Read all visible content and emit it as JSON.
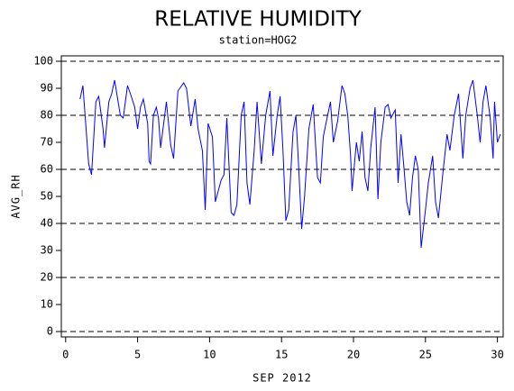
{
  "chart_data": {
    "type": "line",
    "title": "RELATIVE HUMIDITY",
    "subtitle": "station=HOG2",
    "x_label": "SEP 2012",
    "y_label": "AVG_RH",
    "xlim": [
      -0.3,
      30.4
    ],
    "xticks": [
      0,
      5,
      10,
      15,
      20,
      25,
      30
    ],
    "ylim": [
      -2,
      102
    ],
    "yticks": [
      0,
      10,
      20,
      30,
      40,
      50,
      60,
      70,
      80,
      90,
      100
    ],
    "grid_values": [
      0,
      20,
      40,
      60,
      80,
      100
    ],
    "series": [
      {
        "color": "#0000ff",
        "x": [
          1.0,
          1.2,
          1.6,
          1.8,
          2.1,
          2.3,
          2.6,
          2.7,
          3.0,
          3.2,
          3.4,
          3.8,
          4.0,
          4.3,
          4.5,
          4.8,
          5.0,
          5.2,
          5.4,
          5.7,
          5.8,
          5.9,
          6.1,
          6.3,
          6.45,
          6.6,
          7.0,
          7.3,
          7.5,
          7.8,
          8.2,
          8.4,
          8.7,
          9.0,
          9.2,
          9.5,
          9.7,
          9.9,
          10.2,
          10.4,
          10.8,
          11.0,
          11.2,
          11.5,
          11.7,
          11.9,
          12.2,
          12.4,
          12.6,
          12.8,
          13.1,
          13.3,
          13.6,
          13.9,
          14.2,
          14.4,
          14.7,
          14.9,
          15.1,
          15.3,
          15.5,
          15.8,
          16.0,
          16.2,
          16.4,
          16.6,
          16.9,
          17.2,
          17.5,
          17.7,
          17.9,
          18.2,
          18.4,
          18.6,
          18.9,
          19.2,
          19.4,
          19.6,
          19.8,
          19.9,
          20.2,
          20.4,
          20.6,
          20.8,
          21.0,
          21.2,
          21.5,
          21.7,
          21.9,
          22.2,
          22.4,
          22.6,
          22.9,
          23.1,
          23.3,
          23.5,
          23.7,
          23.9,
          24.1,
          24.3,
          24.5,
          24.7,
          25.0,
          25.2,
          25.5,
          25.7,
          25.9,
          26.2,
          26.5,
          26.7,
          27.0,
          27.3,
          27.6,
          27.8,
          28.1,
          28.3,
          28.6,
          28.8,
          29.0,
          29.2,
          29.5,
          29.7,
          29.8,
          30.0,
          30.2
        ],
        "values": [
          86,
          91,
          62,
          58,
          85,
          87,
          75,
          68,
          85,
          88,
          93,
          80,
          79,
          91,
          88,
          83,
          75,
          83,
          86,
          77,
          63,
          62,
          80,
          83,
          79,
          68,
          85,
          69,
          64,
          89,
          92,
          90,
          76,
          86,
          75,
          67,
          45,
          77,
          72,
          48,
          56,
          58,
          79,
          44,
          43,
          47,
          80,
          85,
          55,
          47,
          67,
          85,
          62,
          80,
          89,
          65,
          80,
          87,
          67,
          41,
          45,
          74,
          80,
          60,
          38,
          50,
          75,
          84,
          57,
          55,
          72,
          80,
          85,
          70,
          78,
          91,
          88,
          80,
          65,
          52,
          70,
          63,
          74,
          57,
          52,
          68,
          83,
          49,
          70,
          83,
          84,
          79,
          82,
          55,
          73,
          61,
          48,
          43,
          57,
          65,
          60,
          31,
          45,
          55,
          65,
          48,
          42,
          58,
          73,
          67,
          80,
          88,
          64,
          80,
          90,
          93,
          80,
          70,
          85,
          91,
          79,
          64,
          85,
          70,
          73
        ]
      }
    ]
  }
}
